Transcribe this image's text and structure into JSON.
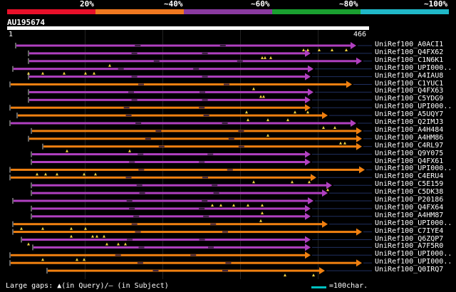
{
  "scale": {
    "labels": [
      "20%",
      "~40%",
      "~60%",
      "~80%",
      "~100%"
    ],
    "colors": [
      "#e8102a",
      "#f07820",
      "#8a3aa0",
      "#1aa030",
      "#20b8c8"
    ]
  },
  "query": {
    "title": "AU195674",
    "start": "1",
    "end": "466"
  },
  "colors": {
    "purple": "#b040c0",
    "orange": "#f08010",
    "tri": "#f0d040"
  },
  "hits": [
    {
      "label": "UniRef100_A0ACI1",
      "color": "purple"
    },
    {
      "label": "UniRef100_Q4FX62",
      "color": "purple"
    },
    {
      "label": "UniRef100_C1N6K1",
      "color": "purple"
    },
    {
      "label": "UniRef100_UPI000..",
      "color": "purple"
    },
    {
      "label": "UniRef100_A4IAU8",
      "color": "purple"
    },
    {
      "label": "UniRef100_C1YUC1",
      "color": "orange"
    },
    {
      "label": "UniRef100_Q4FX63",
      "color": "purple"
    },
    {
      "label": "UniRef100_C5YDG9",
      "color": "purple"
    },
    {
      "label": "UniRef100_UPI000..",
      "color": "orange"
    },
    {
      "label": "UniRef100_A5UQY7",
      "color": "orange"
    },
    {
      "label": "UniRef100_Q2IMJ3",
      "color": "purple"
    },
    {
      "label": "UniRef100_A4H484",
      "color": "orange"
    },
    {
      "label": "UniRef100_A4HM86",
      "color": "orange"
    },
    {
      "label": "UniRef100_C4RL97",
      "color": "orange"
    },
    {
      "label": "UniRef100_Q9Y075",
      "color": "purple"
    },
    {
      "label": "UniRef100_Q4FX61",
      "color": "purple"
    },
    {
      "label": "UniRef100_UPI000..",
      "color": "orange"
    },
    {
      "label": "UniRef100_C4ERU4",
      "color": "orange"
    },
    {
      "label": "UniRef100_C5E159",
      "color": "purple"
    },
    {
      "label": "UniRef100_C5DK38",
      "color": "purple"
    },
    {
      "label": "UniRef100_P20186",
      "color": "purple"
    },
    {
      "label": "UniRef100_Q4FX64",
      "color": "purple"
    },
    {
      "label": "UniRef100_A4HM87",
      "color": "purple"
    },
    {
      "label": "UniRef100_UPI000..",
      "color": "orange"
    },
    {
      "label": "UniRef100_C7IYE4",
      "color": "orange"
    },
    {
      "label": "UniRef100_Q6ZQP7",
      "color": "purple"
    },
    {
      "label": "UniRef100_A7F5R0",
      "color": "purple"
    },
    {
      "label": "UniRef100_UPI000..",
      "color": "orange"
    },
    {
      "label": "UniRef100_UPI000..",
      "color": "orange"
    },
    {
      "label": "UniRef100_Q0IRQ7",
      "color": "orange"
    }
  ],
  "footer": {
    "text": "Large gaps: ▲(in Query)/— (in Subject)",
    "legend": "=100char."
  }
}
